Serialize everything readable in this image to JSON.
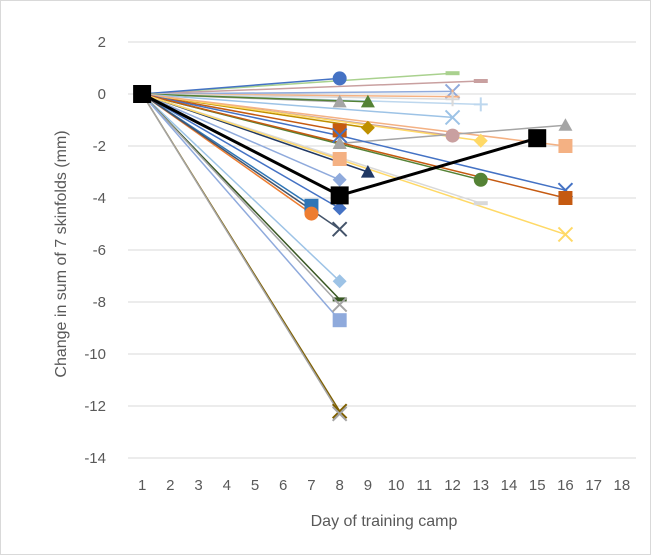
{
  "chart_data": {
    "type": "line",
    "title": "",
    "xlabel": "Day of training camp",
    "ylabel": "Change in sum of 7 skinfolds (mm)",
    "xlim": [
      0.5,
      18.5
    ],
    "ylim": [
      -14,
      2
    ],
    "x_ticks": [
      1,
      2,
      3,
      4,
      5,
      6,
      7,
      8,
      9,
      10,
      11,
      12,
      13,
      14,
      15,
      16,
      17,
      18
    ],
    "y_ticks": [
      2,
      0,
      -2,
      -4,
      -6,
      -8,
      -10,
      -12,
      -14
    ],
    "grid": "horizontal",
    "legend": "none",
    "series": [
      {
        "color": "#a9d18e",
        "marker": "dash",
        "x": [
          1,
          12
        ],
        "y": [
          0,
          0.8
        ]
      },
      {
        "color": "#c9a0a0",
        "marker": "dash",
        "x": [
          1,
          13
        ],
        "y": [
          0,
          0.5
        ]
      },
      {
        "color": "#4472c4",
        "marker": "circle",
        "x": [
          1,
          8
        ],
        "y": [
          0,
          0.6
        ]
      },
      {
        "color": "#8faadc",
        "marker": "x",
        "x": [
          1,
          12
        ],
        "y": [
          0,
          0.1
        ]
      },
      {
        "color": "#f4b183",
        "marker": "plus",
        "x": [
          1,
          12
        ],
        "y": [
          0,
          -0.1
        ]
      },
      {
        "color": "#bdd7ee",
        "marker": "plus",
        "x": [
          1,
          13
        ],
        "y": [
          0,
          -0.4
        ]
      },
      {
        "color": "#d9d9d9",
        "marker": "plus",
        "x": [
          1,
          12
        ],
        "y": [
          0,
          -0.2
        ]
      },
      {
        "color": "#a5a5a5",
        "marker": "triangle",
        "x": [
          1,
          8
        ],
        "y": [
          0,
          -0.3
        ]
      },
      {
        "color": "#548235",
        "marker": "triangle",
        "x": [
          1,
          9
        ],
        "y": [
          0,
          -0.3
        ]
      },
      {
        "color": "#9dc3e6",
        "marker": "x",
        "x": [
          1,
          12
        ],
        "y": [
          0,
          -0.9
        ]
      },
      {
        "color": "#bf9000",
        "marker": "diamond",
        "x": [
          1,
          9
        ],
        "y": [
          0,
          -1.3
        ]
      },
      {
        "color": "#c55a11",
        "marker": "square",
        "x": [
          1,
          8
        ],
        "y": [
          0,
          -1.4
        ]
      },
      {
        "color": "#c9a0a0",
        "marker": "circle",
        "x": [
          1,
          12
        ],
        "y": [
          0,
          -1.6
        ]
      },
      {
        "color": "#ffd966",
        "marker": "diamond",
        "x": [
          1,
          13
        ],
        "y": [
          0,
          -1.8
        ]
      },
      {
        "color": "#a9d18e",
        "marker": "triangle",
        "x": [
          1,
          8
        ],
        "y": [
          0,
          -1.9
        ]
      },
      {
        "color": "#f4b183",
        "marker": "square",
        "x": [
          1,
          16
        ],
        "y": [
          0,
          -2.0
        ]
      },
      {
        "color": "#a5a5a5",
        "marker": "triangle",
        "x": [
          1,
          8,
          16
        ],
        "y": [
          0,
          -1.9,
          -1.2
        ]
      },
      {
        "color": "#f4b183",
        "marker": "square",
        "x": [
          1,
          8
        ],
        "y": [
          0,
          -2.5
        ]
      },
      {
        "color": "#203864",
        "marker": "triangle",
        "x": [
          1,
          9
        ],
        "y": [
          0,
          -3.0
        ]
      },
      {
        "color": "#8faadc",
        "marker": "diamond",
        "x": [
          1,
          8
        ],
        "y": [
          0,
          -3.3
        ]
      },
      {
        "color": "#548235",
        "marker": "circle",
        "x": [
          1,
          13
        ],
        "y": [
          0,
          -3.3
        ]
      },
      {
        "color": "#4472c4",
        "marker": "x",
        "x": [
          1,
          8,
          16
        ],
        "y": [
          0,
          -1.6,
          -3.7
        ]
      },
      {
        "color": "#c55a11",
        "marker": "square",
        "x": [
          1,
          16
        ],
        "y": [
          0,
          -4.0
        ]
      },
      {
        "color": "#d9d9d9",
        "marker": "dash",
        "x": [
          1,
          13
        ],
        "y": [
          0,
          -4.2
        ]
      },
      {
        "color": "#2e75b6",
        "marker": "square",
        "x": [
          1,
          7
        ],
        "y": [
          0,
          -4.3
        ]
      },
      {
        "color": "#4472c4",
        "marker": "diamond",
        "x": [
          1,
          8
        ],
        "y": [
          0,
          -4.4
        ]
      },
      {
        "color": "#ed7d31",
        "marker": "circle",
        "x": [
          1,
          7
        ],
        "y": [
          0,
          -4.6
        ]
      },
      {
        "color": "#44546a",
        "marker": "x",
        "x": [
          1,
          8
        ],
        "y": [
          0,
          -5.2
        ]
      },
      {
        "color": "#ffd966",
        "marker": "x",
        "x": [
          1,
          16
        ],
        "y": [
          0,
          -5.4
        ]
      },
      {
        "color": "#9dc3e6",
        "marker": "diamond",
        "x": [
          1,
          8
        ],
        "y": [
          0,
          -7.2
        ]
      },
      {
        "color": "#385723",
        "marker": "dash",
        "x": [
          1,
          8
        ],
        "y": [
          0,
          -7.9
        ]
      },
      {
        "color": "#a5a5a5",
        "marker": "x",
        "x": [
          1,
          8
        ],
        "y": [
          0,
          -8.1
        ]
      },
      {
        "color": "#8faadc",
        "marker": "square",
        "x": [
          1,
          8
        ],
        "y": [
          0,
          -8.7
        ]
      },
      {
        "color": "#7f6000",
        "marker": "x",
        "x": [
          1,
          8
        ],
        "y": [
          0,
          -12.2
        ]
      },
      {
        "color": "#a5a5a5",
        "marker": "x",
        "x": [
          1,
          8
        ],
        "y": [
          0,
          -12.3
        ]
      },
      {
        "color": "#000000",
        "marker": "square",
        "emphasis": true,
        "x": [
          1,
          8,
          15
        ],
        "y": [
          0,
          -3.9,
          -1.7
        ]
      }
    ]
  }
}
